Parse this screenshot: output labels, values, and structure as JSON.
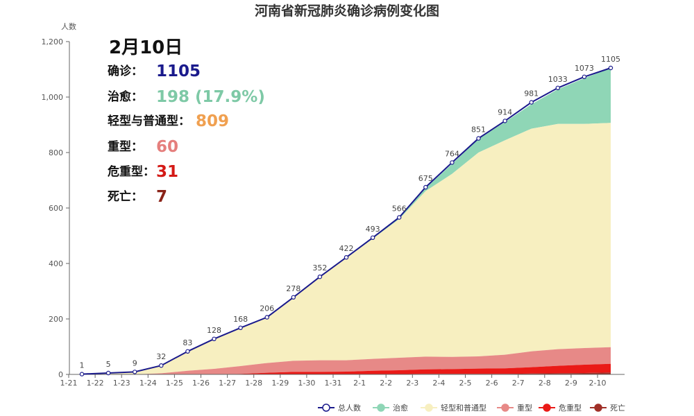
{
  "chart_data": {
    "type": "area",
    "title": "河南省新冠肺炎确诊病例变化图",
    "ylabel": "人数",
    "ylim": [
      0,
      1200
    ],
    "yticks": [
      0,
      200,
      400,
      600,
      800,
      1000,
      1200
    ],
    "ytick_labels": [
      "0",
      "200",
      "400",
      "600",
      "800",
      "1,000",
      "1,200"
    ],
    "categories": [
      "1-21",
      "1-22",
      "1-23",
      "1-24",
      "1-25",
      "1-26",
      "1-27",
      "1-28",
      "1-29",
      "1-30",
      "1-31",
      "2-1",
      "2-2",
      "2-3",
      "2-4",
      "2-5",
      "2-6",
      "2-7",
      "2-8",
      "2-9",
      "2-10"
    ],
    "grid": false,
    "legend_position": "bottom-right",
    "series": [
      {
        "name": "总人数",
        "kind": "line",
        "color": "#1a1a8c",
        "values": [
          1,
          5,
          9,
          32,
          83,
          128,
          168,
          206,
          278,
          352,
          422,
          493,
          566,
          675,
          764,
          851,
          914,
          981,
          1033,
          1073,
          1105
        ]
      },
      {
        "name": "治愈",
        "kind": "area",
        "color": "#8fd6b6",
        "values": [
          0,
          0,
          0,
          0,
          0,
          0,
          0,
          1,
          1,
          2,
          3,
          4,
          6,
          11,
          36,
          49,
          66,
          88,
          125,
          165,
          198
        ]
      },
      {
        "name": "轻型和普通型",
        "kind": "area",
        "color": "#f7efc0",
        "values": [
          1,
          5,
          9,
          28,
          70,
          108,
          138,
          165,
          228,
          299,
          368,
          433,
          500,
          597,
          660,
          735,
          773,
          803,
          812,
          808,
          809
        ]
      },
      {
        "name": "重型",
        "kind": "area",
        "color": "#e78987",
        "values": [
          0,
          0,
          0,
          4,
          13,
          20,
          28,
          35,
          40,
          42,
          41,
          43,
          45,
          46,
          44,
          44,
          49,
          57,
          60,
          60,
          60
        ]
      },
      {
        "name": "危重型",
        "kind": "area",
        "color": "#ea1a17",
        "values": [
          0,
          0,
          0,
          0,
          0,
          0,
          2,
          5,
          8,
          8,
          9,
          12,
          14,
          16,
          17,
          19,
          20,
          23,
          27,
          30,
          31
        ]
      },
      {
        "name": "死亡",
        "kind": "area",
        "color": "#a03028",
        "values": [
          0,
          0,
          0,
          0,
          0,
          0,
          0,
          1,
          1,
          1,
          1,
          1,
          1,
          2,
          2,
          2,
          2,
          3,
          4,
          5,
          7
        ]
      }
    ],
    "point_labels": [
      "1",
      "5",
      "9",
      "32",
      "83",
      "128",
      "168",
      "206",
      "278",
      "352",
      "422",
      "493",
      "566",
      "675",
      "764",
      "851",
      "914",
      "981",
      "1033",
      "1073",
      "1105"
    ]
  },
  "info_panel": {
    "date": "2月10日",
    "rows": [
      {
        "label": "确诊：",
        "value": "1105",
        "color": "#1a1a8c"
      },
      {
        "label": "治愈：",
        "value": "198 (17.9%)",
        "color": "#7ec9a6"
      },
      {
        "label": "轻型与普通型：",
        "value": "809",
        "color": "#f0a050"
      },
      {
        "label": "重型：",
        "value": "60",
        "color": "#e57f7d"
      },
      {
        "label": "危重型：",
        "value": "31",
        "color": "#d41a16"
      },
      {
        "label": "死亡：",
        "value": "7",
        "color": "#8a2318"
      }
    ]
  }
}
